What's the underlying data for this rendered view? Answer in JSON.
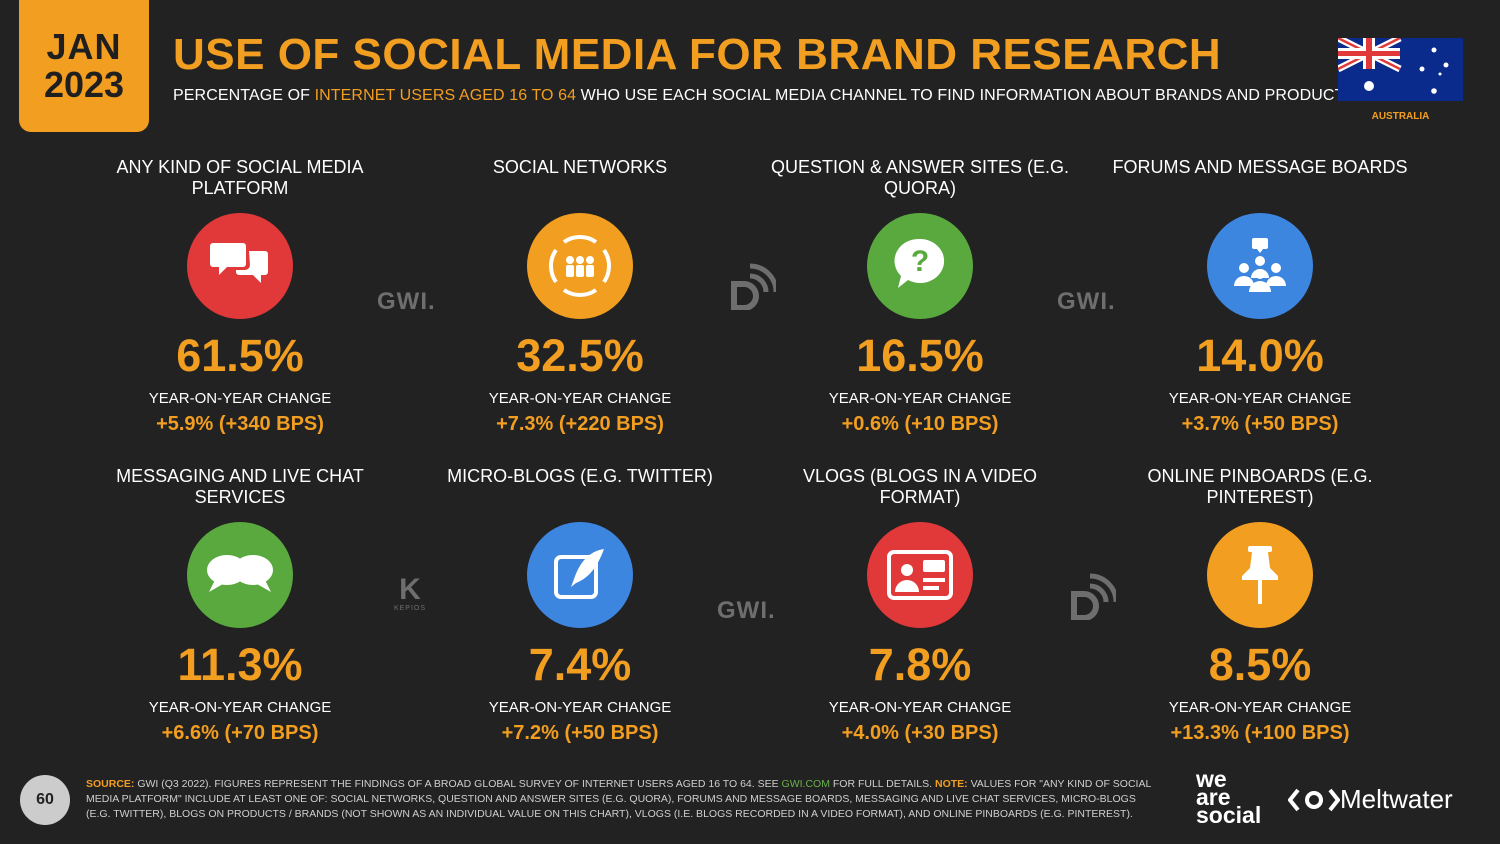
{
  "badge": {
    "month": "JAN",
    "year": "2023"
  },
  "title": "USE OF SOCIAL MEDIA FOR BRAND RESEARCH",
  "subtitle": {
    "part1": "PERCENTAGE OF ",
    "highlight": "INTERNET USERS AGED 16 TO 64",
    "part2": " WHO USE EACH SOCIAL MEDIA CHANNEL TO FIND INFORMATION ABOUT BRANDS AND PRODUCTS"
  },
  "country": "AUSTRALIA",
  "colors": {
    "accent": "#f29e21",
    "background": "#222222"
  },
  "cards": [
    {
      "label": "ANY KIND OF SOCIAL MEDIA PLATFORM",
      "icon": "speech-bubbles-icon",
      "color": "#e1393a",
      "value": "61.5%",
      "yoy_label": "YEAR-ON-YEAR CHANGE",
      "yoy": "+5.9% (+340 BPS)"
    },
    {
      "label": "SOCIAL NETWORKS",
      "icon": "people-network-icon",
      "color": "#f29e21",
      "value": "32.5%",
      "yoy_label": "YEAR-ON-YEAR CHANGE",
      "yoy": "+7.3% (+220 BPS)"
    },
    {
      "label": "QUESTION & ANSWER SITES (E.G. QUORA)",
      "icon": "question-bubble-icon",
      "color": "#5aa93f",
      "value": "16.5%",
      "yoy_label": "YEAR-ON-YEAR CHANGE",
      "yoy": "+0.6% (+10 BPS)"
    },
    {
      "label": "FORUMS AND MESSAGE BOARDS",
      "icon": "forum-group-icon",
      "color": "#3d86e0",
      "value": "14.0%",
      "yoy_label": "YEAR-ON-YEAR CHANGE",
      "yoy": "+3.7% (+50 BPS)"
    },
    {
      "label": "MESSAGING AND LIVE CHAT SERVICES",
      "icon": "chat-bubbles-icon",
      "color": "#5aa93f",
      "value": "11.3%",
      "yoy_label": "YEAR-ON-YEAR CHANGE",
      "yoy": "+6.6% (+70 BPS)"
    },
    {
      "label": "MICRO-BLOGS (E.G. TWITTER)",
      "icon": "quill-edit-icon",
      "color": "#3d86e0",
      "value": "7.4%",
      "yoy_label": "YEAR-ON-YEAR CHANGE",
      "yoy": "+7.2% (+50 BPS)"
    },
    {
      "label": "VLOGS (BLOGS IN A VIDEO FORMAT)",
      "icon": "video-blog-icon",
      "color": "#e1393a",
      "value": "7.8%",
      "yoy_label": "YEAR-ON-YEAR CHANGE",
      "yoy": "+4.0% (+30 BPS)"
    },
    {
      "label": "ONLINE PINBOARDS (E.G. PINTEREST)",
      "icon": "push-pin-icon",
      "color": "#f29e21",
      "value": "8.5%",
      "yoy_label": "YEAR-ON-YEAR CHANGE",
      "yoy": "+13.3% (+100 BPS)"
    }
  ],
  "watermarks": {
    "gwi": "GWI.",
    "kepios_letter": "K",
    "kepios": "KEPIOS"
  },
  "footer": {
    "page": "60",
    "source_label": "SOURCE:",
    "source_text1": " GWI (Q3 2022). FIGURES REPRESENT THE FINDINGS OF A BROAD GLOBAL SURVEY OF INTERNET USERS AGED 16 TO 64. SEE ",
    "source_link": "GWI.COM",
    "source_text2": " FOR FULL DETAILS. ",
    "note_label": "NOTE:",
    "note_text": " VALUES FOR \"ANY KIND OF SOCIAL MEDIA PLATFORM\" INCLUDE AT LEAST ONE OF: SOCIAL NETWORKS, QUESTION AND ANSWER SITES (E.G. QUORA), FORUMS AND MESSAGE BOARDS, MESSAGING AND LIVE CHAT SERVICES, MICRO-BLOGS (E.G. TWITTER), BLOGS ON PRODUCTS / BRANDS (NOT SHOWN AS AN INDIVIDUAL VALUE ON THIS CHART), VLOGS (I.E. BLOGS RECORDED IN A VIDEO FORMAT), AND ONLINE PINBOARDS (E.G. PINTEREST)."
  },
  "brands": {
    "we_are_social": [
      "we",
      "are",
      "social"
    ],
    "meltwater": "Meltwater"
  }
}
